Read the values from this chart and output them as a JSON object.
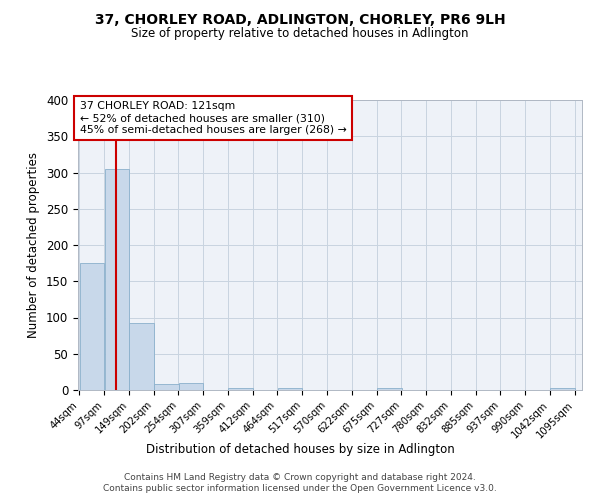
{
  "title1": "37, CHORLEY ROAD, ADLINGTON, CHORLEY, PR6 9LH",
  "title2": "Size of property relative to detached houses in Adlington",
  "xlabel": "Distribution of detached houses by size in Adlington",
  "ylabel": "Number of detached properties",
  "bin_edges": [
    44,
    97,
    149,
    202,
    254,
    307,
    359,
    412,
    464,
    517,
    570,
    622,
    675,
    727,
    780,
    832,
    885,
    937,
    990,
    1042,
    1095
  ],
  "bar_heights": [
    175,
    305,
    92,
    8,
    10,
    0,
    3,
    0,
    3,
    0,
    0,
    0,
    3,
    0,
    0,
    0,
    0,
    0,
    0,
    3,
    3
  ],
  "bar_color": "#c8d8ea",
  "bar_edge_color": "#8ab0cc",
  "property_size": 121,
  "vline_color": "#cc0000",
  "annotation_text": "37 CHORLEY ROAD: 121sqm\n← 52% of detached houses are smaller (310)\n45% of semi-detached houses are larger (268) →",
  "annotation_box_color": "white",
  "annotation_box_edge": "#cc0000",
  "ylim": [
    0,
    400
  ],
  "yticks": [
    0,
    50,
    100,
    150,
    200,
    250,
    300,
    350,
    400
  ],
  "grid_color": "#c8d4e0",
  "bg_color": "#eef2f8",
  "footer1": "Contains HM Land Registry data © Crown copyright and database right 2024.",
  "footer2": "Contains public sector information licensed under the Open Government Licence v3.0."
}
